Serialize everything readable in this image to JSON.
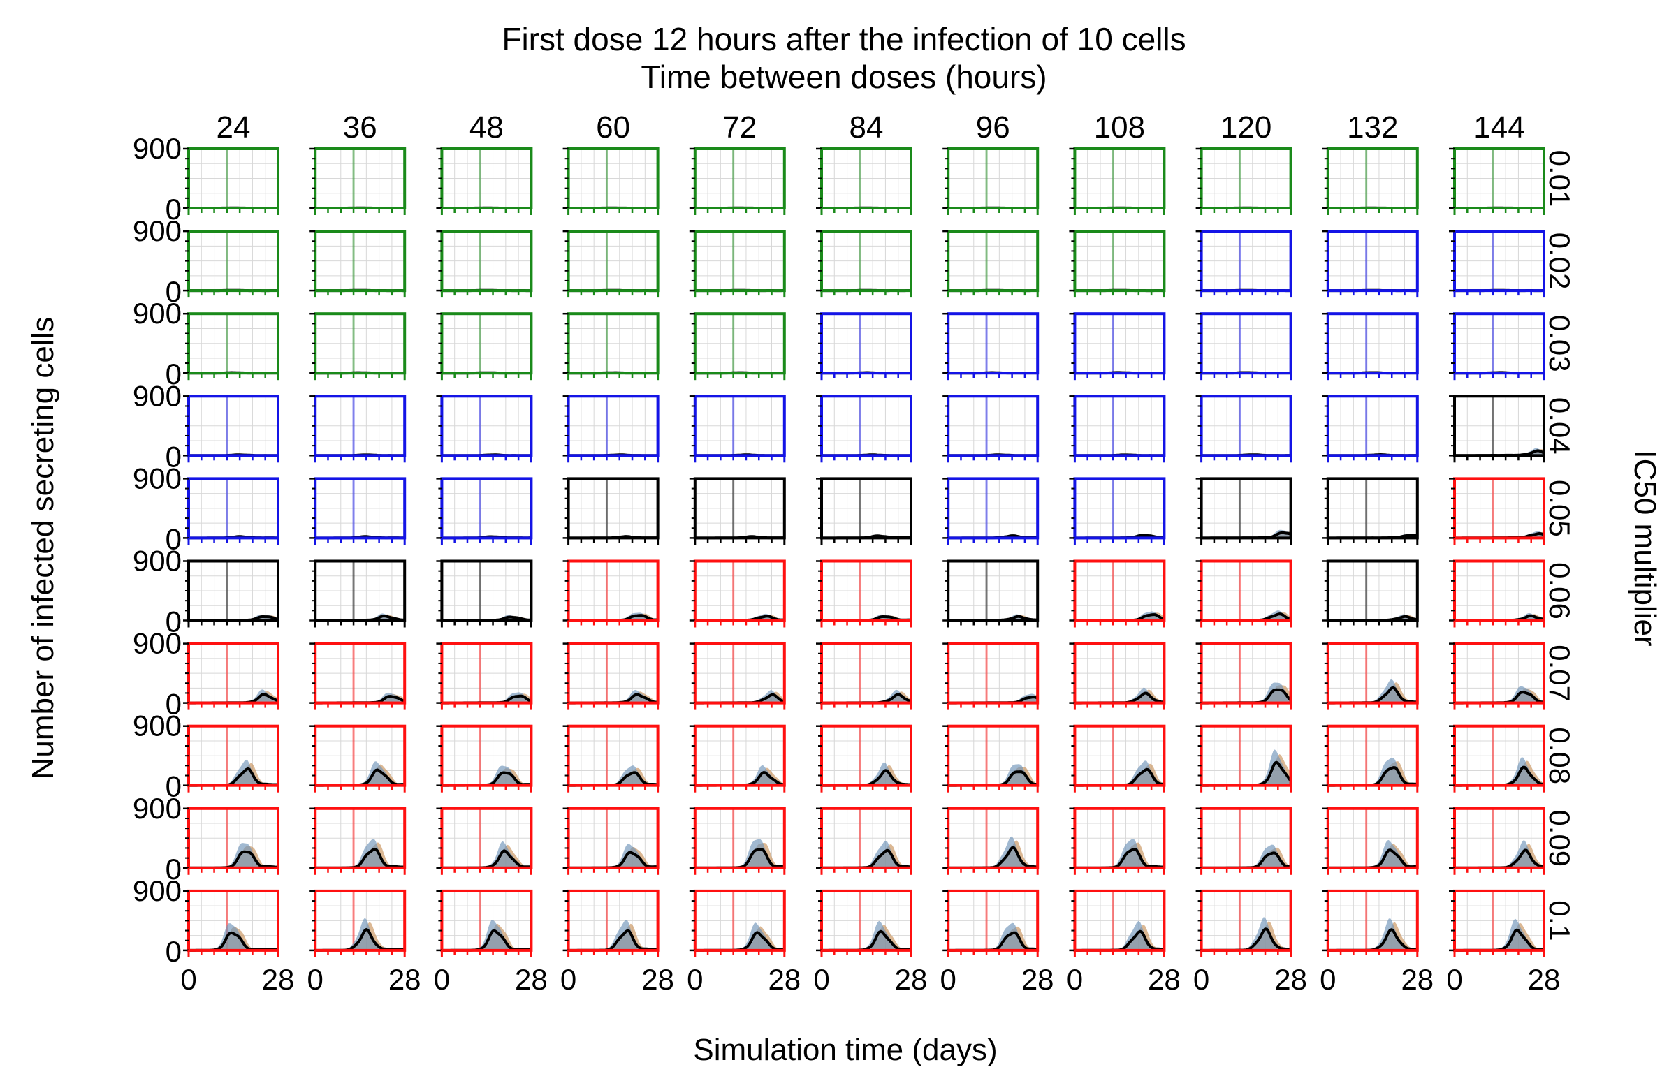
{
  "chart_data": {
    "type": "line",
    "title": "First dose 12 hours after the infection of 10 cells",
    "subtitle": "Time between doses (hours)",
    "xlabel": "Simulation time (days)",
    "ylabel": "Number of infected secreting cells",
    "right_label": "IC50 multiplier",
    "xlim": [
      0,
      28
    ],
    "ylim": [
      0,
      900
    ],
    "x_tick_labels": [
      "0",
      "28"
    ],
    "y_tick_labels": [
      "900",
      "0"
    ],
    "columns": [
      "24",
      "36",
      "48",
      "60",
      "72",
      "84",
      "96",
      "108",
      "120",
      "132",
      "144"
    ],
    "rows": [
      "0.01",
      "0.02",
      "0.03",
      "0.04",
      "0.05",
      "0.06",
      "0.07",
      "0.08",
      "0.09",
      "0.1"
    ],
    "status_colors": {
      "G": "#1a8a1a",
      "B": "#1414e6",
      "K": "#000000",
      "R": "#ff1010"
    },
    "spread_colors": {
      "blue": "#6f93b8",
      "orange": "#c7925a"
    },
    "mean_color": "#000000",
    "first_dose_day": 12,
    "status_grid": [
      [
        "G",
        "G",
        "G",
        "G",
        "G",
        "G",
        "G",
        "G",
        "G",
        "G",
        "G"
      ],
      [
        "G",
        "G",
        "G",
        "G",
        "G",
        "G",
        "G",
        "G",
        "B",
        "B",
        "B"
      ],
      [
        "G",
        "G",
        "G",
        "G",
        "G",
        "B",
        "B",
        "B",
        "B",
        "B",
        "B"
      ],
      [
        "B",
        "B",
        "B",
        "B",
        "B",
        "B",
        "B",
        "B",
        "B",
        "B",
        "K"
      ],
      [
        "B",
        "B",
        "B",
        "K",
        "K",
        "K",
        "B",
        "B",
        "K",
        "K",
        "R"
      ],
      [
        "K",
        "K",
        "K",
        "R",
        "R",
        "R",
        "K",
        "R",
        "R",
        "K",
        "R"
      ],
      [
        "R",
        "R",
        "R",
        "R",
        "R",
        "R",
        "R",
        "R",
        "R",
        "R",
        "R"
      ],
      [
        "R",
        "R",
        "R",
        "R",
        "R",
        "R",
        "R",
        "R",
        "R",
        "R",
        "R"
      ],
      [
        "R",
        "R",
        "R",
        "R",
        "R",
        "R",
        "R",
        "R",
        "R",
        "R",
        "R"
      ],
      [
        "R",
        "R",
        "R",
        "R",
        "R",
        "R",
        "R",
        "R",
        "R",
        "R",
        "R"
      ]
    ],
    "peak_day_grid": [
      [
        14,
        14,
        14,
        14,
        14,
        14,
        14,
        14,
        14,
        14,
        14
      ],
      [
        14,
        14,
        14,
        14,
        14,
        14,
        14,
        14,
        14,
        14,
        14
      ],
      [
        14,
        14,
        14,
        14,
        14,
        14,
        14,
        14,
        14,
        14,
        14
      ],
      [
        16,
        16,
        16,
        16,
        16,
        16,
        16,
        16,
        16,
        16,
        26
      ],
      [
        16,
        16,
        16,
        18,
        18,
        18,
        20,
        22,
        26,
        26,
        26
      ],
      [
        24,
        22,
        22,
        22,
        22,
        20,
        22,
        24,
        24,
        24,
        24
      ],
      [
        24,
        24,
        24,
        22,
        24,
        24,
        26,
        22,
        24,
        20,
        22
      ],
      [
        18,
        20,
        20,
        20,
        22,
        20,
        22,
        22,
        24,
        20,
        22
      ],
      [
        18,
        18,
        20,
        20,
        20,
        20,
        20,
        18,
        22,
        20,
        22
      ],
      [
        14,
        16,
        17,
        18,
        20,
        19,
        20,
        20,
        20,
        20,
        20
      ]
    ],
    "peak_grid": [
      [
        2,
        2,
        2,
        2,
        2,
        2,
        2,
        2,
        2,
        2,
        2
      ],
      [
        4,
        4,
        4,
        4,
        4,
        4,
        4,
        4,
        4,
        4,
        4
      ],
      [
        6,
        6,
        6,
        6,
        6,
        6,
        6,
        8,
        8,
        8,
        8
      ],
      [
        10,
        10,
        10,
        10,
        10,
        10,
        10,
        10,
        12,
        12,
        60
      ],
      [
        20,
        20,
        20,
        20,
        20,
        30,
        30,
        40,
        80,
        40,
        60
      ],
      [
        60,
        60,
        50,
        80,
        60,
        60,
        50,
        90,
        90,
        50,
        60
      ],
      [
        120,
        100,
        110,
        120,
        110,
        110,
        90,
        130,
        220,
        210,
        170
      ],
      [
        240,
        230,
        210,
        200,
        180,
        200,
        230,
        240,
        330,
        290,
        250
      ],
      [
        270,
        290,
        240,
        240,
        310,
        260,
        280,
        300,
        240,
        270,
        240
      ],
      [
        280,
        280,
        300,
        290,
        260,
        270,
        280,
        270,
        290,
        280,
        290
      ]
    ]
  }
}
